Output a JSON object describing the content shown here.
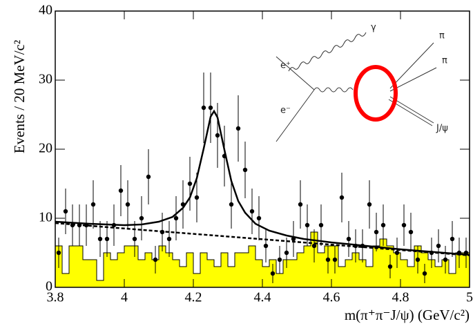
{
  "chart_data": {
    "type": "scatter",
    "x_label": "m(π⁺π⁻J/ψ) (GeV/c²)",
    "y_label": "Events / 20 MeV/c²",
    "xlim": [
      3.8,
      5.0
    ],
    "ylim": [
      0,
      40
    ],
    "xticks": [
      3.8,
      4,
      4.2,
      4.4,
      4.6,
      4.8,
      5
    ],
    "yticks": [
      0,
      10,
      20,
      30,
      40
    ],
    "color": "#000000",
    "x": [
      3.81,
      3.83,
      3.85,
      3.87,
      3.89,
      3.91,
      3.93,
      3.95,
      3.97,
      3.99,
      4.01,
      4.03,
      4.05,
      4.07,
      4.09,
      4.11,
      4.13,
      4.15,
      4.17,
      4.19,
      4.21,
      4.23,
      4.25,
      4.27,
      4.29,
      4.31,
      4.33,
      4.35,
      4.37,
      4.39,
      4.41,
      4.43,
      4.45,
      4.47,
      4.49,
      4.51,
      4.53,
      4.55,
      4.57,
      4.59,
      4.61,
      4.63,
      4.65,
      4.67,
      4.69,
      4.71,
      4.73,
      4.75,
      4.77,
      4.79,
      4.81,
      4.83,
      4.85,
      4.87,
      4.89,
      4.91,
      4.93,
      4.95,
      4.97,
      4.99
    ],
    "values": [
      5,
      11,
      9,
      9,
      9,
      12,
      7,
      7,
      9,
      14,
      12,
      7,
      10,
      16,
      4,
      8,
      7,
      10,
      12,
      15,
      13,
      26,
      26,
      22,
      19,
      12,
      23,
      17,
      11,
      10,
      6,
      2,
      4,
      5,
      7,
      12,
      9,
      6,
      9,
      4,
      4,
      13,
      7,
      6,
      6,
      12,
      8,
      9,
      3,
      5,
      9,
      8,
      4,
      2,
      5,
      6,
      4,
      7,
      5,
      5
    ],
    "errors": [
      2.2,
      3.3,
      3,
      3,
      3,
      3.5,
      2.6,
      2.6,
      3,
      3.7,
      3.5,
      2.6,
      3.2,
      4,
      2,
      2.8,
      2.6,
      3.2,
      3.5,
      3.9,
      3.6,
      5.1,
      5.1,
      4.7,
      4.4,
      3.5,
      4.8,
      4.1,
      3.3,
      3.2,
      2.4,
      1.4,
      2,
      2.2,
      2.6,
      3.5,
      3,
      2.4,
      3,
      2,
      2,
      3.6,
      2.6,
      2.4,
      2.4,
      3.5,
      2.8,
      3,
      1.7,
      2.2,
      3,
      2.8,
      2,
      1.4,
      2.2,
      2.4,
      2,
      2.6,
      2.2,
      2.2
    ],
    "background_hist": {
      "color": "#ffff00",
      "bins": [
        3.8,
        3.82,
        3.84,
        3.86,
        3.88,
        3.9,
        3.92,
        3.94,
        3.96,
        3.98,
        4.0,
        4.02,
        4.04,
        4.06,
        4.08,
        4.1,
        4.12,
        4.14,
        4.16,
        4.18,
        4.2,
        4.22,
        4.24,
        4.26,
        4.28,
        4.3,
        4.32,
        4.34,
        4.36,
        4.38,
        4.4,
        4.42,
        4.44,
        4.46,
        4.48,
        4.5,
        4.52,
        4.54,
        4.56,
        4.58,
        4.6,
        4.62,
        4.64,
        4.66,
        4.68,
        4.7,
        4.72,
        4.74,
        4.76,
        4.78,
        4.8,
        4.82,
        4.84,
        4.86,
        4.88,
        4.9,
        4.92,
        4.94,
        4.96,
        4.98,
        5.0
      ],
      "counts": [
        6,
        2,
        6,
        6,
        4,
        4,
        1,
        5,
        4,
        5,
        6,
        6,
        4,
        5,
        4,
        6,
        5,
        4,
        3,
        5,
        2,
        5,
        4,
        3,
        5,
        3,
        5,
        5,
        6,
        4,
        3,
        4,
        2,
        4,
        4,
        5,
        6,
        8,
        5,
        6,
        6,
        3,
        4,
        5,
        4,
        3,
        6,
        7,
        6,
        5,
        4,
        3,
        6,
        5,
        4,
        3,
        4,
        2,
        5,
        5
      ]
    },
    "fit": {
      "color": "#000000",
      "x": [
        3.8,
        3.9,
        4.0,
        4.05,
        4.1,
        4.14,
        4.17,
        4.19,
        4.21,
        4.23,
        4.25,
        4.26,
        4.27,
        4.29,
        4.31,
        4.33,
        4.35,
        4.38,
        4.42,
        4.47,
        4.52,
        4.6,
        4.7,
        4.8,
        4.9,
        5.0
      ],
      "values": [
        9.5,
        9.2,
        9.0,
        9.1,
        9.5,
        10.2,
        11.5,
        13.0,
        15.8,
        20.1,
        24.7,
        25.5,
        24.6,
        19.9,
        15.4,
        12.5,
        10.8,
        9.2,
        8.2,
        7.5,
        7.0,
        6.5,
        6.0,
        5.5,
        5.1,
        4.7
      ]
    },
    "fit_background": {
      "color": "#000000",
      "x": [
        3.8,
        4.4,
        5.0
      ],
      "values": [
        9.3,
        6.96,
        4.62
      ]
    },
    "inset": {
      "gamma": "γ",
      "e_plus": "e⁺",
      "e_minus": "e⁻",
      "pi_1": "π",
      "pi_2": "π",
      "jpsi": "J/ψ"
    }
  }
}
